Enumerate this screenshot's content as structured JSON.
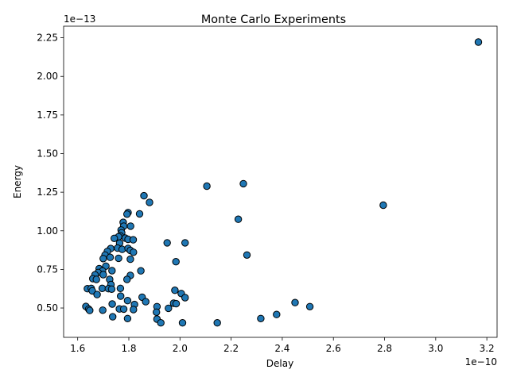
{
  "chart_data": {
    "type": "scatter",
    "title": "Monte Carlo Experiments",
    "xlabel": "Delay",
    "ylabel": "Energy",
    "x_offset_text": "1e−10",
    "y_offset_text": "1e−13",
    "x_scale": 1e-10,
    "y_scale": 1e-13,
    "xlim": [
      1.545,
      3.24
    ],
    "ylim": [
      0.31,
      2.325
    ],
    "x_ticks": [
      1.6,
      1.8,
      2.0,
      2.2,
      2.4,
      2.6,
      2.8,
      3.0,
      3.2
    ],
    "x_tick_labels": [
      "1.6",
      "1.8",
      "2.0",
      "2.2",
      "2.4",
      "2.6",
      "2.8",
      "3.0",
      "3.2"
    ],
    "y_ticks": [
      0.5,
      0.75,
      1.0,
      1.25,
      1.5,
      1.75,
      2.0,
      2.25
    ],
    "y_tick_labels": [
      "0.50",
      "0.75",
      "1.00",
      "1.25",
      "1.50",
      "1.75",
      "2.00",
      "2.25"
    ],
    "grid": false,
    "marker_color": "#1f77b4",
    "marker_edge_color": "#000000",
    "points": [
      [
        3.167,
        2.222
      ],
      [
        2.795,
        1.166
      ],
      [
        2.248,
        1.305
      ],
      [
        2.105,
        1.289
      ],
      [
        2.228,
        1.075
      ],
      [
        2.262,
        0.843
      ],
      [
        2.45,
        0.535
      ],
      [
        2.508,
        0.509
      ],
      [
        2.378,
        0.458
      ],
      [
        2.316,
        0.432
      ],
      [
        2.146,
        0.404
      ],
      [
        2.02,
        0.922
      ],
      [
        1.95,
        0.922
      ],
      [
        1.984,
        0.8
      ],
      [
        1.98,
        0.615
      ],
      [
        2.005,
        0.594
      ],
      [
        2.02,
        0.567
      ],
      [
        1.975,
        0.531
      ],
      [
        1.985,
        0.528
      ],
      [
        1.955,
        0.498
      ],
      [
        1.91,
        0.509
      ],
      [
        1.908,
        0.473
      ],
      [
        1.91,
        0.428
      ],
      [
        1.925,
        0.404
      ],
      [
        2.01,
        0.404
      ],
      [
        1.859,
        1.227
      ],
      [
        1.881,
        1.184
      ],
      [
        1.842,
        1.11
      ],
      [
        1.797,
        1.118
      ],
      [
        1.793,
        1.108
      ],
      [
        1.778,
        1.055
      ],
      [
        1.78,
        1.03
      ],
      [
        1.807,
        1.03
      ],
      [
        1.77,
        1.005
      ],
      [
        1.772,
        0.987
      ],
      [
        1.766,
        0.968
      ],
      [
        1.76,
        0.962
      ],
      [
        1.743,
        0.951
      ],
      [
        1.786,
        0.953
      ],
      [
        1.797,
        0.945
      ],
      [
        1.817,
        0.942
      ],
      [
        1.764,
        0.92
      ],
      [
        1.729,
        0.885
      ],
      [
        1.756,
        0.888
      ],
      [
        1.774,
        0.88
      ],
      [
        1.797,
        0.886
      ],
      [
        1.806,
        0.873
      ],
      [
        1.818,
        0.861
      ],
      [
        1.716,
        0.866
      ],
      [
        1.707,
        0.843
      ],
      [
        1.7,
        0.82
      ],
      [
        1.727,
        0.828
      ],
      [
        1.76,
        0.822
      ],
      [
        1.806,
        0.816
      ],
      [
        1.71,
        0.771
      ],
      [
        1.684,
        0.755
      ],
      [
        1.697,
        0.74
      ],
      [
        1.734,
        0.742
      ],
      [
        1.68,
        0.73
      ],
      [
        1.7,
        0.716
      ],
      [
        1.668,
        0.715
      ],
      [
        1.806,
        0.711
      ],
      [
        1.847,
        0.741
      ],
      [
        1.659,
        0.69
      ],
      [
        1.673,
        0.685
      ],
      [
        1.725,
        0.685
      ],
      [
        1.793,
        0.685
      ],
      [
        1.73,
        0.652
      ],
      [
        1.638,
        0.625
      ],
      [
        1.653,
        0.627
      ],
      [
        1.696,
        0.627
      ],
      [
        1.72,
        0.625
      ],
      [
        1.733,
        0.622
      ],
      [
        1.767,
        0.627
      ],
      [
        1.657,
        0.611
      ],
      [
        1.676,
        0.587
      ],
      [
        1.768,
        0.577
      ],
      [
        1.852,
        0.57
      ],
      [
        1.795,
        0.548
      ],
      [
        1.866,
        0.541
      ],
      [
        1.735,
        0.526
      ],
      [
        1.822,
        0.523
      ],
      [
        1.632,
        0.51
      ],
      [
        1.643,
        0.493
      ],
      [
        1.647,
        0.484
      ],
      [
        1.698,
        0.486
      ],
      [
        1.763,
        0.494
      ],
      [
        1.78,
        0.493
      ],
      [
        1.818,
        0.49
      ],
      [
        1.737,
        0.443
      ],
      [
        1.795,
        0.432
      ]
    ]
  }
}
